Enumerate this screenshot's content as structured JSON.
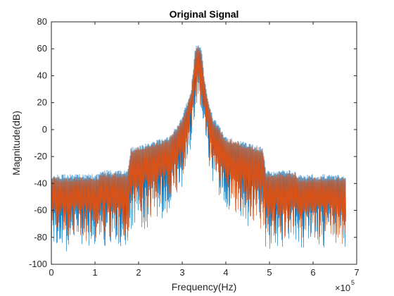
{
  "chart_data": {
    "type": "line",
    "title": "Original Signal",
    "xlabel": "Frequency(Hz)",
    "ylabel": "Magnitude(dB)",
    "x_multiplier_base": "×10",
    "x_multiplier_exponent": "5",
    "xlim": [
      0,
      700000
    ],
    "ylim": [
      -100,
      80
    ],
    "x_ticks": [
      0,
      100000,
      200000,
      300000,
      400000,
      500000,
      600000,
      700000
    ],
    "x_tick_labels": [
      "0",
      "1",
      "2",
      "3",
      "4",
      "5",
      "6",
      "7"
    ],
    "y_ticks": [
      -100,
      -80,
      -60,
      -40,
      -20,
      0,
      20,
      40,
      60,
      80
    ],
    "y_tick_labels": [
      "-100",
      "-80",
      "-60",
      "-40",
      "-20",
      "0",
      "20",
      "40",
      "60",
      "80"
    ],
    "grid": false,
    "series": [
      {
        "color": "#0072BD",
        "x_max": 675000,
        "envelope_x": [
          0,
          110000,
          112000,
          175000,
          182000,
          270000,
          300000,
          320000,
          330000,
          338000,
          343000,
          355000,
          370000,
          400000,
          485000,
          492000,
          560000,
          562000,
          675000
        ],
        "envelope_upper": [
          -33,
          -33,
          -30,
          -30,
          -13,
          -5,
          10,
          30,
          62,
          64,
          62,
          30,
          10,
          -5,
          -13,
          -30,
          -30,
          -33,
          -33
        ],
        "envelope_lower": [
          -85,
          -85,
          -85,
          -85,
          -75,
          -60,
          -40,
          -10,
          10,
          30,
          10,
          -10,
          -40,
          -60,
          -75,
          -85,
          -85,
          -85,
          -85
        ]
      },
      {
        "color": "#D95319",
        "x_max": 675000,
        "envelope_x": [
          0,
          110000,
          112000,
          175000,
          182000,
          270000,
          300000,
          320000,
          330000,
          338000,
          343000,
          355000,
          370000,
          400000,
          485000,
          492000,
          560000,
          562000,
          675000
        ],
        "envelope_upper": [
          -35,
          -35,
          -32,
          -32,
          -14,
          -6,
          8,
          28,
          60,
          62,
          60,
          28,
          8,
          -6,
          -14,
          -32,
          -32,
          -35,
          -35
        ],
        "envelope_lower": [
          -80,
          -80,
          -80,
          -80,
          -70,
          -55,
          -35,
          -5,
          15,
          35,
          15,
          -5,
          -35,
          -55,
          -70,
          -80,
          -80,
          -80,
          -80
        ]
      }
    ]
  }
}
